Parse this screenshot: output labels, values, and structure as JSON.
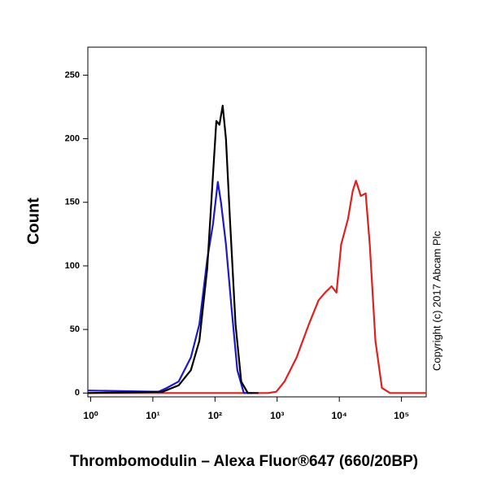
{
  "chart_data": {
    "type": "line",
    "x_label": "Thrombomodulin – Alexa Fluor®647 (660/20BP)",
    "y_label": "Count",
    "annotation": "Copyright (c) 2017 Abcam Plc",
    "log_x": true,
    "xlim": [
      0.9,
      250000
    ],
    "xticks": [
      {
        "value": 1,
        "label": "10⁰"
      },
      {
        "value": 10,
        "label": "10¹"
      },
      {
        "value": 100,
        "label": "10²"
      },
      {
        "value": 1000,
        "label": "10³"
      },
      {
        "value": 10000,
        "label": "10⁴"
      },
      {
        "value": 100000,
        "label": "10⁵"
      }
    ],
    "ylim": [
      -3,
      272
    ],
    "yticks": [
      0,
      50,
      100,
      150,
      200,
      250
    ],
    "series": [
      {
        "color": "#e0201e",
        "x": [
          0.9,
          718,
          970,
          1312,
          2060,
          3236,
          4645,
          5904,
          7516,
          9000,
          10720,
          13800,
          16450,
          18550,
          22200,
          26600,
          30900,
          38100,
          48500,
          65600,
          250000
        ],
        "values": [
          0,
          0,
          1,
          9,
          28,
          54,
          73,
          79,
          84,
          79,
          117,
          137,
          159,
          167,
          155,
          157,
          117,
          41,
          4,
          0,
          0
        ]
      },
      {
        "color": "#1a1acc",
        "x": [
          0.9,
          12.3,
          16.7,
          26,
          41,
          56,
          75,
          93,
          111,
          125,
          150,
          185,
          229,
          291,
          400
        ],
        "values": [
          2,
          1,
          4,
          9,
          28,
          54,
          105,
          133,
          166,
          150,
          117,
          66,
          18,
          0,
          0
        ]
      },
      {
        "color": "#000000",
        "x": [
          0.9,
          14.4,
          26,
          41,
          56,
          75,
          93,
          105,
          118,
          133,
          150,
          174,
          214,
          264,
          337,
          500
        ],
        "values": [
          0,
          1,
          6,
          18,
          41,
          98,
          172,
          214,
          211,
          226,
          200,
          137,
          54,
          9,
          0,
          0
        ]
      }
    ]
  }
}
